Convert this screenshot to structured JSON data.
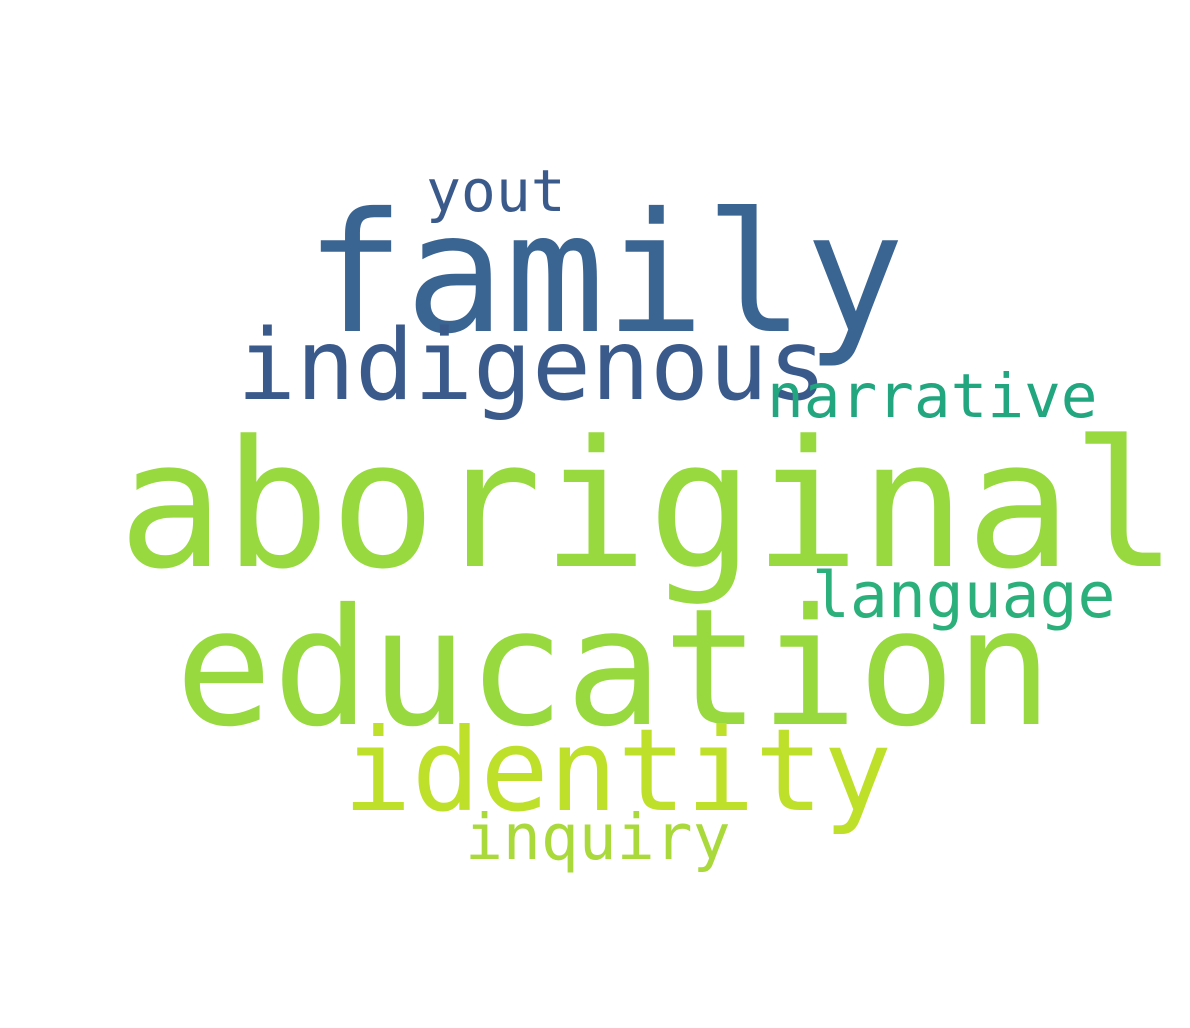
{
  "word_cloud": {
    "words": [
      {
        "id": "family",
        "text": "family",
        "color": "#3a6491"
      },
      {
        "id": "aboriginal",
        "text": "aboriginal",
        "color": "#97d93f"
      },
      {
        "id": "education",
        "text": "education",
        "color": "#97d93f"
      },
      {
        "id": "indigenous",
        "text": "indigenous",
        "color": "#3b5a8c"
      },
      {
        "id": "identity",
        "text": "identity",
        "color": "#bfe02a"
      },
      {
        "id": "narrative",
        "text": "narrative",
        "color": "#21a67f"
      },
      {
        "id": "language",
        "text": "language",
        "color": "#2bb07c"
      },
      {
        "id": "inquiry",
        "text": "inquiry",
        "color": "#a9d93b"
      },
      {
        "id": "yout",
        "text": "yout",
        "color": "#3b5a8c"
      }
    ]
  }
}
